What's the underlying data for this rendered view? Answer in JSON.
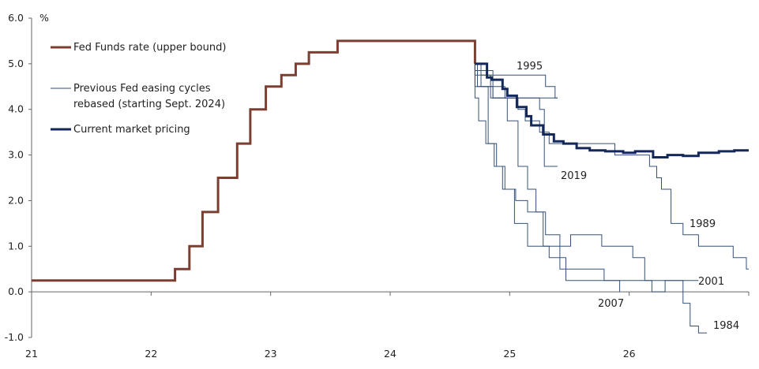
{
  "chart_data": {
    "type": "line",
    "unit_label": "%",
    "ylim": [
      -1.0,
      6.0
    ],
    "xlim": [
      21,
      27
    ],
    "grid": false,
    "legend_position": "top-left",
    "y_ticks": [
      "6.0",
      "5.0",
      "4.0",
      "3.0",
      "2.0",
      "1.0",
      "0.0",
      "-1.0"
    ],
    "x_ticks": [
      "21",
      "22",
      "23",
      "24",
      "25",
      "26"
    ],
    "colors": {
      "fed_funds": "#7b3f32",
      "current": "#14285a",
      "previous": "#36507a",
      "axis": "#666666"
    },
    "series": [
      {
        "key": "fed_funds",
        "name": "Fed Funds rate (upper bound)",
        "style": "step-thick",
        "points": [
          [
            21.0,
            0.25
          ],
          [
            22.2,
            0.25
          ],
          [
            22.2,
            0.5
          ],
          [
            22.32,
            0.5
          ],
          [
            22.32,
            1.0
          ],
          [
            22.43,
            1.0
          ],
          [
            22.43,
            1.75
          ],
          [
            22.56,
            1.75
          ],
          [
            22.56,
            2.5
          ],
          [
            22.72,
            2.5
          ],
          [
            22.72,
            3.25
          ],
          [
            22.83,
            3.25
          ],
          [
            22.83,
            4.0
          ],
          [
            22.96,
            4.0
          ],
          [
            22.96,
            4.5
          ],
          [
            23.09,
            4.5
          ],
          [
            23.09,
            4.75
          ],
          [
            23.21,
            4.75
          ],
          [
            23.21,
            5.0
          ],
          [
            23.32,
            5.0
          ],
          [
            23.32,
            5.25
          ],
          [
            23.56,
            5.25
          ],
          [
            23.56,
            5.5
          ],
          [
            24.71,
            5.5
          ],
          [
            24.71,
            5.0
          ]
        ]
      },
      {
        "key": "previous",
        "name": "Previous Fed easing cycles rebased (starting Sept. 2024)",
        "style": "thin",
        "lines": [
          {
            "label": "1995",
            "points": [
              [
                24.71,
                5.0
              ],
              [
                24.71,
                4.75
              ],
              [
                25.3,
                4.75
              ],
              [
                25.3,
                4.5
              ],
              [
                25.38,
                4.5
              ],
              [
                25.38,
                4.25
              ],
              [
                25.4,
                4.25
              ]
            ]
          },
          {
            "label": "",
            "points": [
              [
                24.71,
                5.0
              ],
              [
                24.71,
                4.5
              ],
              [
                24.84,
                4.5
              ],
              [
                24.84,
                4.25
              ],
              [
                25.4,
                4.25
              ]
            ]
          },
          {
            "label": "2019",
            "points": [
              [
                24.71,
                5.0
              ],
              [
                24.71,
                4.85
              ],
              [
                24.86,
                4.85
              ],
              [
                24.86,
                4.25
              ],
              [
                25.25,
                4.25
              ],
              [
                25.25,
                4.0
              ],
              [
                25.29,
                4.0
              ],
              [
                25.29,
                2.75
              ],
              [
                25.4,
                2.75
              ]
            ]
          },
          {
            "label": "1989",
            "points": [
              [
                24.76,
                5.0
              ],
              [
                24.76,
                4.75
              ],
              [
                24.84,
                4.75
              ],
              [
                24.84,
                4.5
              ],
              [
                24.96,
                4.5
              ],
              [
                24.96,
                4.25
              ],
              [
                25.07,
                4.25
              ],
              [
                25.07,
                4.0
              ],
              [
                25.13,
                4.0
              ],
              [
                25.13,
                3.75
              ],
              [
                25.25,
                3.75
              ],
              [
                25.25,
                3.5
              ],
              [
                25.33,
                3.5
              ],
              [
                25.33,
                3.25
              ],
              [
                25.88,
                3.25
              ],
              [
                25.88,
                3.0
              ],
              [
                26.17,
                3.0
              ],
              [
                26.17,
                2.75
              ],
              [
                26.23,
                2.75
              ],
              [
                26.23,
                2.5
              ],
              [
                26.27,
                2.5
              ],
              [
                26.27,
                2.25
              ],
              [
                26.35,
                2.25
              ],
              [
                26.35,
                1.5
              ],
              [
                26.45,
                1.5
              ],
              [
                26.45,
                1.25
              ],
              [
                26.58,
                1.25
              ],
              [
                26.58,
                1.0
              ],
              [
                26.87,
                1.0
              ],
              [
                26.87,
                0.75
              ],
              [
                26.98,
                0.75
              ],
              [
                26.98,
                0.5
              ],
              [
                27.0,
                0.5
              ]
            ]
          },
          {
            "label": "2001",
            "points": [
              [
                24.71,
                5.0
              ],
              [
                24.71,
                4.25
              ],
              [
                24.74,
                4.25
              ],
              [
                24.74,
                3.75
              ],
              [
                24.8,
                3.75
              ],
              [
                24.8,
                3.25
              ],
              [
                24.87,
                3.25
              ],
              [
                24.87,
                2.75
              ],
              [
                24.94,
                2.75
              ],
              [
                24.94,
                2.25
              ],
              [
                25.05,
                2.25
              ],
              [
                25.05,
                2.0
              ],
              [
                25.15,
                2.0
              ],
              [
                25.15,
                1.75
              ],
              [
                25.28,
                1.75
              ],
              [
                25.28,
                1.0
              ],
              [
                25.51,
                1.0
              ],
              [
                25.51,
                1.25
              ],
              [
                25.77,
                1.25
              ],
              [
                25.77,
                1.0
              ],
              [
                26.03,
                1.0
              ],
              [
                26.03,
                0.75
              ],
              [
                26.13,
                0.75
              ],
              [
                26.13,
                0.25
              ],
              [
                26.58,
                0.25
              ]
            ]
          },
          {
            "label": "2007",
            "points": [
              [
                24.73,
                5.0
              ],
              [
                24.73,
                4.5
              ],
              [
                24.82,
                4.5
              ],
              [
                24.82,
                3.25
              ],
              [
                24.89,
                3.25
              ],
              [
                24.89,
                2.75
              ],
              [
                24.96,
                2.75
              ],
              [
                24.96,
                2.25
              ],
              [
                25.04,
                2.25
              ],
              [
                25.04,
                1.5
              ],
              [
                25.15,
                1.5
              ],
              [
                25.15,
                1.0
              ],
              [
                25.33,
                1.0
              ],
              [
                25.33,
                0.75
              ],
              [
                25.47,
                0.75
              ],
              [
                25.47,
                0.25
              ],
              [
                25.92,
                0.25
              ],
              [
                25.92,
                0.0
              ]
            ]
          },
          {
            "label": "1984",
            "points": [
              [
                24.76,
                5.0
              ],
              [
                24.76,
                4.5
              ],
              [
                24.86,
                4.5
              ],
              [
                24.86,
                4.25
              ],
              [
                24.98,
                4.25
              ],
              [
                24.98,
                3.75
              ],
              [
                25.07,
                3.75
              ],
              [
                25.07,
                2.75
              ],
              [
                25.15,
                2.75
              ],
              [
                25.15,
                2.25
              ],
              [
                25.22,
                2.25
              ],
              [
                25.22,
                1.75
              ],
              [
                25.3,
                1.75
              ],
              [
                25.3,
                1.25
              ],
              [
                25.42,
                1.25
              ],
              [
                25.42,
                0.5
              ],
              [
                25.79,
                0.5
              ],
              [
                25.79,
                0.25
              ],
              [
                26.19,
                0.25
              ],
              [
                26.19,
                0.0
              ],
              [
                26.3,
                0.0
              ],
              [
                26.3,
                0.25
              ],
              [
                26.45,
                0.25
              ],
              [
                26.45,
                -0.25
              ],
              [
                26.51,
                -0.25
              ],
              [
                26.51,
                -0.75
              ],
              [
                26.58,
                -0.75
              ],
              [
                26.58,
                -0.9
              ],
              [
                26.65,
                -0.9
              ]
            ]
          }
        ]
      },
      {
        "key": "current",
        "name": "Current market pricing",
        "style": "step-thick",
        "points": [
          [
            24.71,
            5.0
          ],
          [
            24.81,
            5.0
          ],
          [
            24.81,
            4.7
          ],
          [
            24.85,
            4.7
          ],
          [
            24.85,
            4.65
          ],
          [
            24.94,
            4.65
          ],
          [
            24.94,
            4.45
          ],
          [
            24.98,
            4.45
          ],
          [
            24.98,
            4.3
          ],
          [
            25.06,
            4.3
          ],
          [
            25.06,
            4.05
          ],
          [
            25.14,
            4.05
          ],
          [
            25.14,
            3.85
          ],
          [
            25.18,
            3.85
          ],
          [
            25.18,
            3.65
          ],
          [
            25.28,
            3.65
          ],
          [
            25.28,
            3.45
          ],
          [
            25.37,
            3.45
          ],
          [
            25.37,
            3.3
          ],
          [
            25.45,
            3.3
          ],
          [
            25.45,
            3.25
          ],
          [
            25.56,
            3.25
          ],
          [
            25.56,
            3.15
          ],
          [
            25.67,
            3.15
          ],
          [
            25.67,
            3.1
          ],
          [
            25.8,
            3.1
          ],
          [
            25.8,
            3.08
          ],
          [
            25.95,
            3.08
          ],
          [
            25.95,
            3.05
          ],
          [
            26.05,
            3.05
          ],
          [
            26.05,
            3.08
          ],
          [
            26.2,
            3.08
          ],
          [
            26.2,
            2.95
          ],
          [
            26.32,
            2.95
          ],
          [
            26.32,
            3.0
          ],
          [
            26.45,
            3.0
          ],
          [
            26.45,
            2.98
          ],
          [
            26.58,
            2.98
          ],
          [
            26.58,
            3.05
          ],
          [
            26.75,
            3.05
          ],
          [
            26.75,
            3.08
          ],
          [
            26.88,
            3.08
          ],
          [
            26.88,
            3.1
          ],
          [
            27.0,
            3.1
          ]
        ]
      }
    ],
    "annotations": [
      "1995",
      "2019",
      "1989",
      "2001",
      "2007",
      "1984"
    ]
  }
}
